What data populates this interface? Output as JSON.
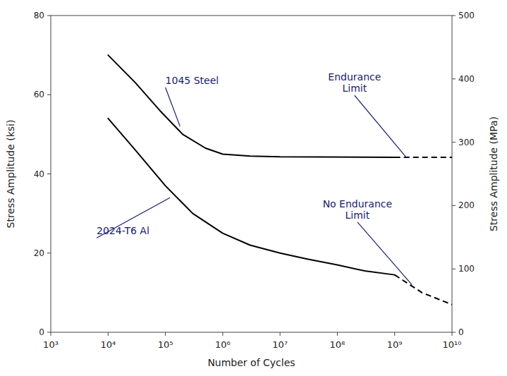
{
  "chart_data": {
    "type": "line",
    "log": "x",
    "xlabel": "Number of Cycles",
    "ylabel": "Stress Amplitude (ksi)",
    "y2label": "Stress Amplitude (MPa)",
    "xlim": [
      1000,
      10000000000
    ],
    "xticks": [
      {
        "value": 1000,
        "label": "10³"
      },
      {
        "value": 10000,
        "label": "10⁴"
      },
      {
        "value": 100000,
        "label": "10⁵"
      },
      {
        "value": 1000000,
        "label": "10⁶"
      },
      {
        "value": 10000000,
        "label": "10⁷"
      },
      {
        "value": 100000000,
        "label": "10⁸"
      },
      {
        "value": 1000000000,
        "label": "10⁹"
      },
      {
        "value": 10000000000,
        "label": "10¹⁰"
      }
    ],
    "ylim": [
      0,
      80
    ],
    "yticks": [
      0,
      20,
      40,
      60,
      80
    ],
    "y2lim": [
      0,
      500
    ],
    "y2ticks": [
      0,
      100,
      200,
      300,
      400,
      500
    ],
    "series": [
      {
        "x": [
          10000,
          30000,
          80000,
          200000,
          500000,
          1000000,
          3000000,
          10000000,
          1000000000
        ],
        "values": [
          70,
          63,
          56,
          50,
          46.5,
          45.0,
          44.5,
          44.3,
          44.2
        ],
        "color": "#000000",
        "line_style": "solid"
      },
      {
        "x": [
          1000000000,
          10000000000
        ],
        "values": [
          44.2,
          44.2
        ],
        "color": "#000000",
        "line_style": "dashed"
      },
      {
        "x": [
          10000,
          30000,
          100000,
          300000,
          1000000,
          3000000,
          10000000,
          30000000,
          100000000,
          300000000,
          1000000000
        ],
        "values": [
          54,
          46,
          37,
          30,
          25,
          22,
          20,
          18.5,
          17.0,
          15.5,
          14.5
        ],
        "color": "#000000",
        "line_style": "solid"
      },
      {
        "x": [
          1000000000,
          3000000000,
          10000000000
        ],
        "values": [
          14.5,
          10.0,
          7.0
        ],
        "color": "#000000",
        "line_style": "dashed"
      }
    ],
    "annotations": [
      {
        "text": "1045 Steel",
        "x": 180000,
        "y": 52,
        "text_x": 100000,
        "text_y": 62,
        "align": "left",
        "color": "#1a1a6e"
      },
      {
        "text": "2024-T6 Al",
        "x": 120000,
        "y": 34,
        "text_x": 6309.573444801933,
        "text_y": 24,
        "align": "left",
        "color": "#1a1a6e"
      },
      {
        "text": "Endurance\nLimit",
        "x": 1584893192.4611137,
        "y": 44.2,
        "text_x": 199526231.49688795,
        "text_y": 60,
        "align": "center",
        "color": "#1a1a6e"
      },
      {
        "text": "No Endurance\nLimit",
        "x": 1995262314.9688795,
        "y": 12.0,
        "text_x": 223872113.85683393,
        "text_y": 28,
        "align": "center",
        "color": "#1a1a6e"
      }
    ]
  }
}
